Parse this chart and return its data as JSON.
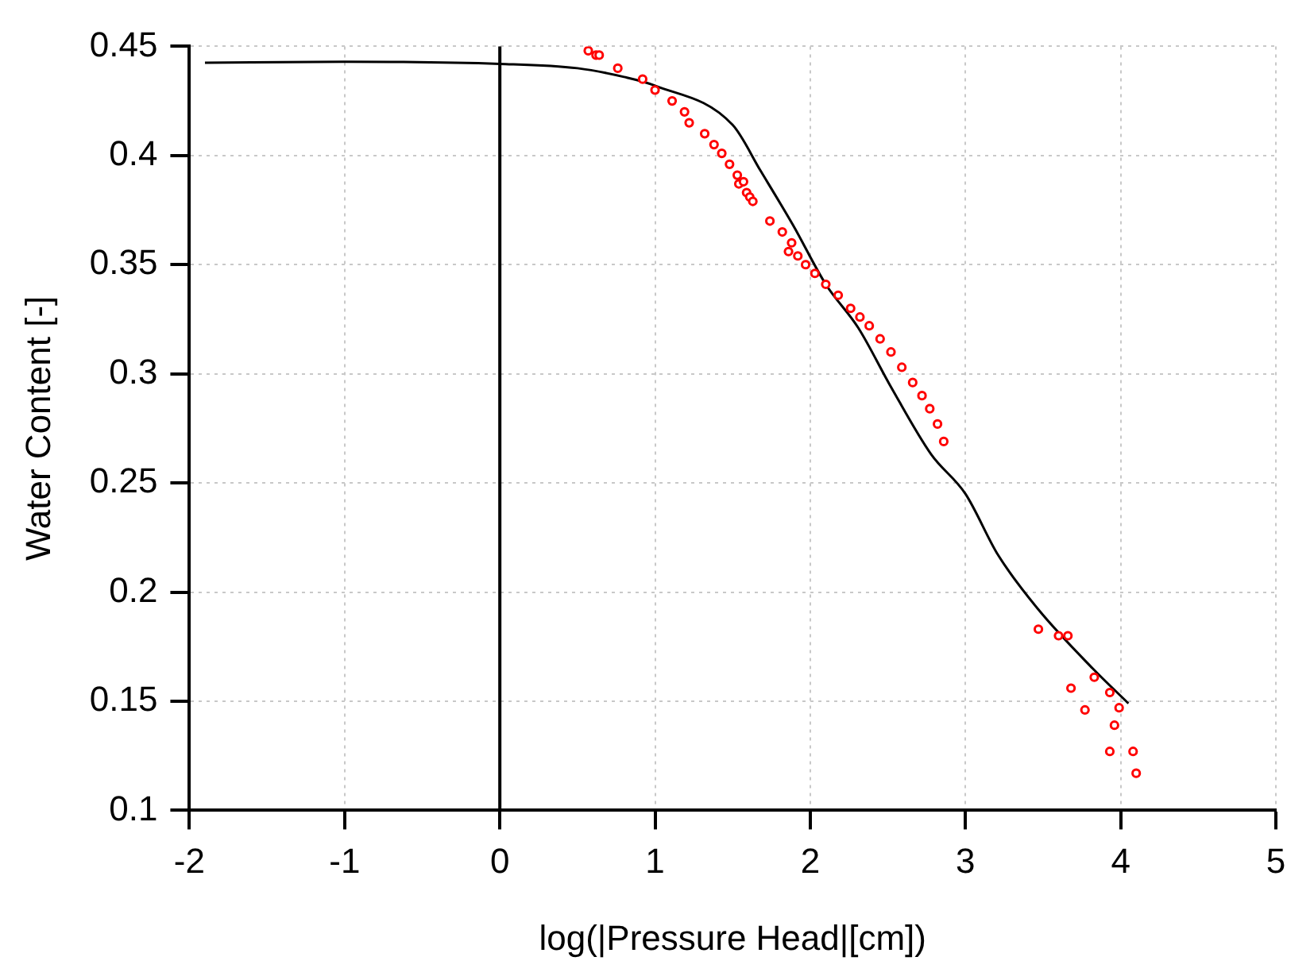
{
  "chart_data": {
    "type": "scatter",
    "xlabel": "log(|Pressure Head|[cm])",
    "ylabel": "Water Content [-]",
    "xlim": [
      -2,
      5
    ],
    "xticks": [
      -2,
      -1,
      0,
      1,
      2,
      3,
      4,
      5
    ],
    "ylim": [
      0.1,
      0.45
    ],
    "yticks": [
      0.1,
      0.15,
      0.2,
      0.25,
      0.3,
      0.35,
      0.4,
      0.45
    ],
    "grid": true,
    "marker": "circle",
    "ref_lines": [
      {
        "axis": "x",
        "value": 0,
        "color": "#000000"
      }
    ],
    "series": [
      {
        "type": "line",
        "color": "#000000",
        "marker": "none",
        "line_style": "solid",
        "x": [
          -1.9,
          -1,
          0,
          0.5,
          0.8,
          1,
          1.5,
          1.68,
          1.89,
          2.1,
          2.31,
          2.52,
          2.78,
          3,
          3.21,
          3.47,
          3.82,
          4.05
        ],
        "values": [
          0.4425,
          0.443,
          0.442,
          0.44,
          0.436,
          0.432,
          0.414,
          0.393,
          0.368,
          0.341,
          0.321,
          0.294,
          0.263,
          0.245,
          0.217,
          0.192,
          0.165,
          0.149
        ]
      },
      {
        "color": "#ff0000",
        "x": [
          0.57,
          0.62,
          0.64,
          0.76,
          0.92,
          1.0,
          1.11,
          1.19,
          1.22,
          1.32,
          1.38,
          1.43,
          1.48,
          1.53,
          1.54,
          1.57,
          1.59,
          1.61,
          1.63,
          1.74,
          1.82,
          1.88,
          1.86,
          1.92,
          1.97,
          2.03,
          2.1,
          2.18,
          2.26,
          2.32,
          2.38,
          2.45,
          2.52,
          2.59,
          2.66,
          2.72,
          2.77,
          2.82,
          2.86,
          3.47,
          3.6,
          3.66,
          3.68,
          3.83,
          3.77,
          3.93,
          3.99,
          3.96,
          3.93,
          4.08,
          4.1
        ],
        "values": [
          0.448,
          0.446,
          0.446,
          0.44,
          0.435,
          0.43,
          0.425,
          0.42,
          0.415,
          0.41,
          0.405,
          0.401,
          0.396,
          0.391,
          0.387,
          0.388,
          0.383,
          0.381,
          0.379,
          0.37,
          0.365,
          0.36,
          0.356,
          0.354,
          0.35,
          0.346,
          0.341,
          0.336,
          0.33,
          0.326,
          0.322,
          0.316,
          0.31,
          0.303,
          0.296,
          0.29,
          0.284,
          0.277,
          0.269,
          0.183,
          0.18,
          0.18,
          0.156,
          0.161,
          0.146,
          0.154,
          0.147,
          0.139,
          0.127,
          0.127,
          0.117
        ]
      }
    ]
  }
}
